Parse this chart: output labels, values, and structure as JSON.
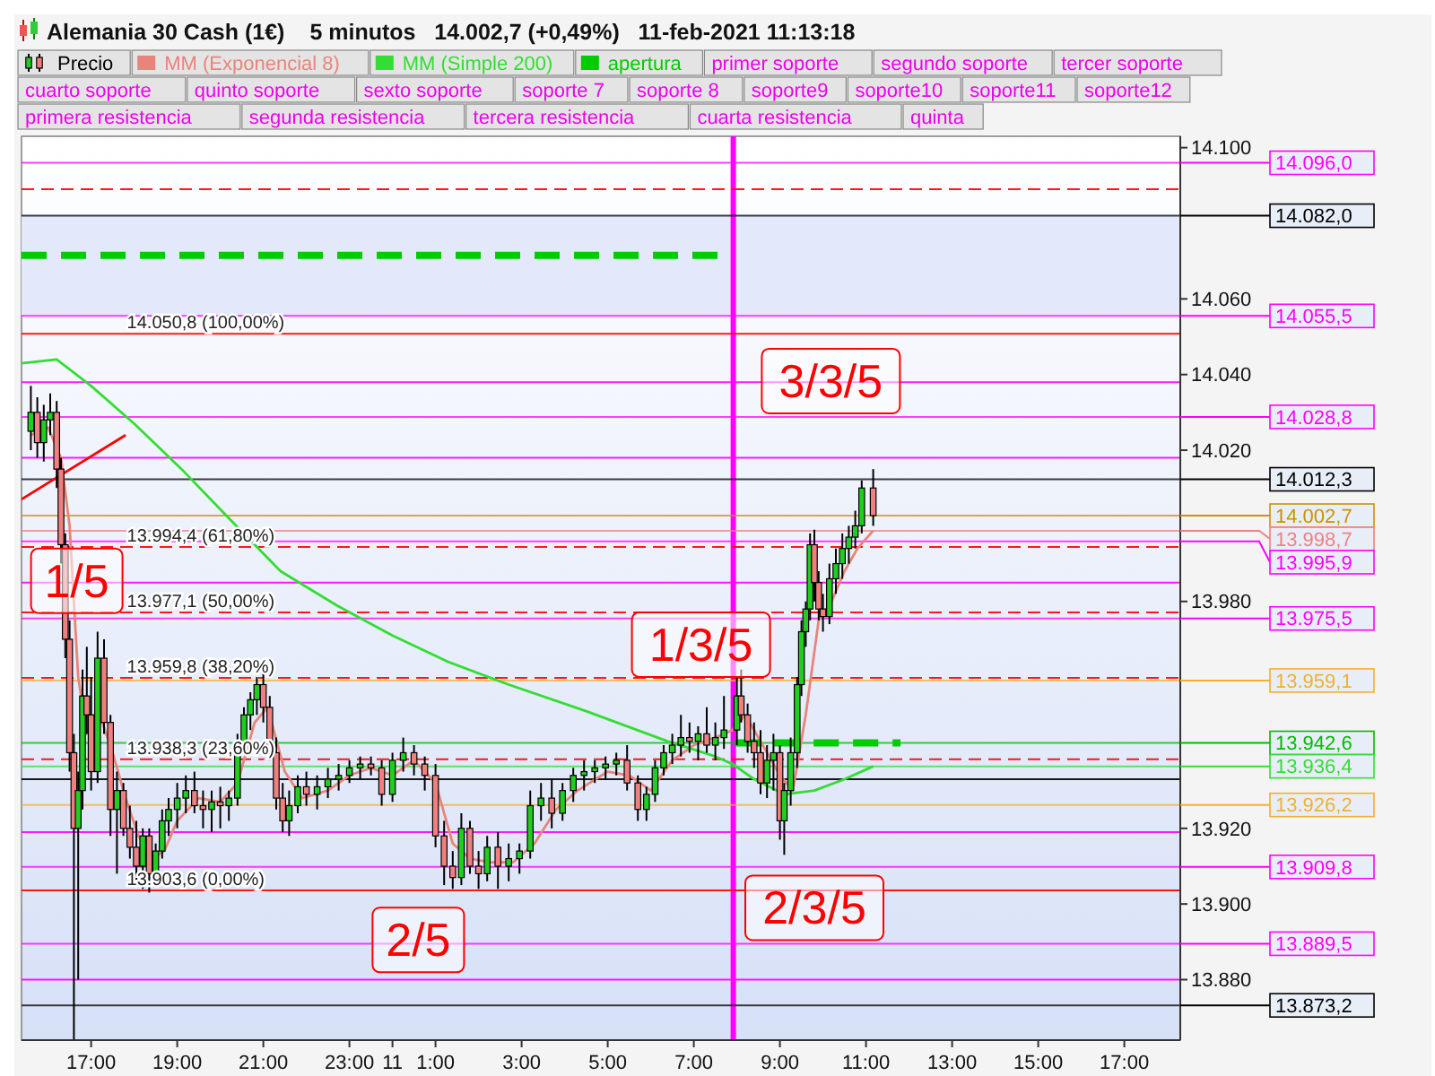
{
  "chart_data": {
    "type": "candlestick",
    "title": "Alemania 30 Cash (1€)",
    "subtitle": "5 minutos   14.002,7 (+0,49%)   11-feb-2021 11:13:18",
    "xlim": [
      "2021-02-10T15:23",
      "2021-02-11T18:18"
    ],
    "ylim": [
      13864,
      14103
    ],
    "xticks": [
      {
        "value": "2021-02-10T17:00",
        "label": "17:00"
      },
      {
        "value": "2021-02-10T19:00",
        "label": "19:00"
      },
      {
        "value": "2021-02-10T21:00",
        "label": "21:00"
      },
      {
        "value": "2021-02-10T23:00",
        "label": "23:00"
      },
      {
        "value": "2021-02-11T00:00",
        "label": "11"
      },
      {
        "value": "2021-02-11T01:00",
        "label": "1:00"
      },
      {
        "value": "2021-02-11T03:00",
        "label": "3:00"
      },
      {
        "value": "2021-02-11T05:00",
        "label": "5:00"
      },
      {
        "value": "2021-02-11T07:00",
        "label": "7:00"
      },
      {
        "value": "2021-02-11T09:00",
        "label": "9:00"
      },
      {
        "value": "2021-02-11T11:00",
        "label": "11:00"
      },
      {
        "value": "2021-02-11T13:00",
        "label": "13:00"
      },
      {
        "value": "2021-02-11T15:00",
        "label": "15:00"
      },
      {
        "value": "2021-02-11T17:00",
        "label": "17:00"
      }
    ],
    "yticks": [
      {
        "value": 14100,
        "label": "14.100"
      },
      {
        "value": 14060,
        "label": "14.060"
      },
      {
        "value": 14040,
        "label": "14.040"
      },
      {
        "value": 14020,
        "label": "14.020"
      },
      {
        "value": 13980,
        "label": "13.980"
      },
      {
        "value": 13920,
        "label": "13.920"
      },
      {
        "value": 13900,
        "label": "13.900"
      },
      {
        "value": 13880,
        "label": "13.880"
      }
    ],
    "legend": "top",
    "series": [
      {
        "name": "Precio",
        "colors": [
          "#22cc22",
          "#f08080",
          "#22cc22",
          "#22cc22",
          "#f08080",
          "#f08080",
          "#f08080",
          "#f08080",
          "#f08080",
          "#22cc22",
          "#22cc22",
          "#f08080",
          "#f08080",
          "#22cc22",
          "#f08080",
          "#f08080",
          "#22cc22",
          "#f08080",
          "#f08080",
          "#f08080",
          "#22cc22",
          "#f08080",
          "#22cc22",
          "#22cc22",
          "#22cc22",
          "#22cc22",
          "#22cc22",
          "#f08080",
          "#f08080",
          "#22cc22",
          "#f08080",
          "#22cc22",
          "#22cc22",
          "#22cc22",
          "#22cc22",
          "#22cc22",
          "#f08080",
          "#f08080",
          "#f08080",
          "#f08080",
          "#22cc22",
          "#22cc22",
          "#f08080",
          "#22cc22",
          "#22cc22",
          "#22cc22",
          "#22cc22",
          "#22cc22",
          "#f08080",
          "#f08080",
          "#22cc22",
          "#22cc22",
          "#f08080",
          "#f08080",
          "#f08080",
          "#f08080",
          "#f08080",
          "#22cc22",
          "#f08080",
          "#f08080",
          "#22cc22",
          "#f08080",
          "#22cc22",
          "#22cc22",
          "#22cc22",
          "#22cc22",
          "#f08080",
          "#22cc22",
          "#22cc22",
          "#22cc22",
          "#22cc22",
          "#22cc22",
          "#22cc22",
          "#f08080",
          "#f08080",
          "#22cc22",
          "#22cc22",
          "#22cc22",
          "#22cc22",
          "#22cc22",
          "#f08080",
          "#22cc22",
          "#f08080",
          "#22cc22",
          "#22cc22",
          "#22cc22",
          "#f08080",
          "#f08080",
          "#f08080",
          "#f08080",
          "#22cc22",
          "#22cc22",
          "#f08080",
          "#22cc22",
          "#22cc22",
          "#22cc22",
          "#22cc22",
          "#22cc22",
          "#22cc22",
          "#f08080",
          "#f08080",
          "#f08080",
          "#22cc22",
          "#22cc22",
          "#22cc22",
          "#22cc22",
          "#22cc22",
          "#22cc22",
          "#f08080"
        ],
        "x": [
          "2021-02-10T15:36",
          "2021-02-10T15:45",
          "2021-02-10T15:54",
          "2021-02-10T16:03",
          "2021-02-10T16:12",
          "2021-02-10T16:18",
          "2021-02-10T16:24",
          "2021-02-10T16:30",
          "2021-02-10T16:36",
          "2021-02-10T16:42",
          "2021-02-10T16:48",
          "2021-02-10T16:54",
          "2021-02-10T17:00",
          "2021-02-10T17:09",
          "2021-02-10T17:18",
          "2021-02-10T17:27",
          "2021-02-10T17:36",
          "2021-02-10T17:45",
          "2021-02-10T17:54",
          "2021-02-10T18:03",
          "2021-02-10T18:12",
          "2021-02-10T18:21",
          "2021-02-10T18:30",
          "2021-02-10T18:39",
          "2021-02-10T18:48",
          "2021-02-10T19:00",
          "2021-02-10T19:12",
          "2021-02-10T19:24",
          "2021-02-10T19:36",
          "2021-02-10T19:48",
          "2021-02-10T20:00",
          "2021-02-10T20:12",
          "2021-02-10T20:24",
          "2021-02-10T20:33",
          "2021-02-10T20:42",
          "2021-02-10T20:51",
          "2021-02-10T21:00",
          "2021-02-10T21:09",
          "2021-02-10T21:18",
          "2021-02-10T21:27",
          "2021-02-10T21:36",
          "2021-02-10T21:48",
          "2021-02-10T22:00",
          "2021-02-10T22:15",
          "2021-02-10T22:30",
          "2021-02-10T22:45",
          "2021-02-10T23:00",
          "2021-02-10T23:15",
          "2021-02-10T23:30",
          "2021-02-10T23:45",
          "2021-02-11T00:00",
          "2021-02-11T00:15",
          "2021-02-11T00:30",
          "2021-02-11T00:45",
          "2021-02-11T01:00",
          "2021-02-11T01:12",
          "2021-02-11T01:24",
          "2021-02-11T01:36",
          "2021-02-11T01:48",
          "2021-02-11T02:00",
          "2021-02-11T02:12",
          "2021-02-11T02:27",
          "2021-02-11T02:42",
          "2021-02-11T02:57",
          "2021-02-11T03:12",
          "2021-02-11T03:27",
          "2021-02-11T03:42",
          "2021-02-11T03:57",
          "2021-02-11T04:12",
          "2021-02-11T04:27",
          "2021-02-11T04:42",
          "2021-02-11T04:57",
          "2021-02-11T05:12",
          "2021-02-11T05:27",
          "2021-02-11T05:42",
          "2021-02-11T05:54",
          "2021-02-11T06:06",
          "2021-02-11T06:18",
          "2021-02-11T06:30",
          "2021-02-11T06:42",
          "2021-02-11T06:54",
          "2021-02-11T07:06",
          "2021-02-11T07:18",
          "2021-02-11T07:30",
          "2021-02-11T07:42",
          "2021-02-11T08:00",
          "2021-02-11T08:06",
          "2021-02-11T08:15",
          "2021-02-11T08:24",
          "2021-02-11T08:33",
          "2021-02-11T08:42",
          "2021-02-11T08:51",
          "2021-02-11T09:00",
          "2021-02-11T09:06",
          "2021-02-11T09:15",
          "2021-02-11T09:24",
          "2021-02-11T09:30",
          "2021-02-11T09:36",
          "2021-02-11T09:42",
          "2021-02-11T09:48",
          "2021-02-11T09:54",
          "2021-02-11T10:00",
          "2021-02-11T10:09",
          "2021-02-11T10:18",
          "2021-02-11T10:27",
          "2021-02-11T10:36",
          "2021-02-11T10:45",
          "2021-02-11T10:54",
          "2021-02-11T11:10"
        ],
        "ohlc": [
          [
            14025,
            14037,
            14020,
            14030
          ],
          [
            14030,
            14034,
            14018,
            14022
          ],
          [
            14022,
            14032,
            14017,
            14028
          ],
          [
            14028,
            14035,
            14024,
            14030
          ],
          [
            14030,
            14033,
            14010,
            14015
          ],
          [
            14015,
            14018,
            13990,
            13995
          ],
          [
            13995,
            13998,
            13965,
            13970
          ],
          [
            13970,
            13975,
            13935,
            13940
          ],
          [
            13940,
            13945,
            13864,
            13920
          ],
          [
            13920,
            13935,
            13880,
            13930
          ],
          [
            13930,
            13962,
            13925,
            13955
          ],
          [
            13955,
            13968,
            13945,
            13950
          ],
          [
            13950,
            13960,
            13930,
            13935
          ],
          [
            13935,
            13972,
            13932,
            13965
          ],
          [
            13965,
            13970,
            13945,
            13948
          ],
          [
            13948,
            13950,
            13918,
            13925
          ],
          [
            13925,
            13935,
            13908,
            13930
          ],
          [
            13930,
            13932,
            13918,
            13920
          ],
          [
            13920,
            13926,
            13912,
            13915
          ],
          [
            13915,
            13922,
            13905,
            13910
          ],
          [
            13910,
            13920,
            13904,
            13918
          ],
          [
            13918,
            13920,
            13903,
            13908
          ],
          [
            13908,
            13916,
            13906,
            13914
          ],
          [
            13914,
            13925,
            13912,
            13922
          ],
          [
            13922,
            13928,
            13918,
            13925
          ],
          [
            13925,
            13932,
            13920,
            13928
          ],
          [
            13928,
            13934,
            13924,
            13930
          ],
          [
            13930,
            13935,
            13924,
            13926
          ],
          [
            13926,
            13930,
            13920,
            13925
          ],
          [
            13925,
            13930,
            13919,
            13927
          ],
          [
            13927,
            13931,
            13920,
            13926
          ],
          [
            13926,
            13930,
            13922,
            13928
          ],
          [
            13928,
            13945,
            13926,
            13942
          ],
          [
            13942,
            13952,
            13940,
            13950
          ],
          [
            13950,
            13956,
            13946,
            13954
          ],
          [
            13954,
            13960,
            13950,
            13958
          ],
          [
            13958,
            13961,
            13948,
            13952
          ],
          [
            13952,
            13955,
            13938,
            13940
          ],
          [
            13940,
            13944,
            13925,
            13928
          ],
          [
            13928,
            13932,
            13919,
            13922
          ],
          [
            13922,
            13930,
            13918,
            13926
          ],
          [
            13926,
            13934,
            13924,
            13931
          ],
          [
            13931,
            13935,
            13926,
            13929
          ],
          [
            13929,
            13934,
            13925,
            13931
          ],
          [
            13931,
            13936,
            13928,
            13933
          ],
          [
            13933,
            13937,
            13930,
            13934
          ],
          [
            13934,
            13938,
            13932,
            13936
          ],
          [
            13936,
            13939,
            13933,
            13937
          ],
          [
            13937,
            13939,
            13934,
            13936
          ],
          [
            13936,
            13938,
            13926,
            13929
          ],
          [
            13929,
            13940,
            13927,
            13938
          ],
          [
            13938,
            13944,
            13935,
            13940
          ],
          [
            13940,
            13942,
            13934,
            13937
          ],
          [
            13937,
            13939,
            13930,
            13934
          ],
          [
            13934,
            13937,
            13915,
            13918
          ],
          [
            13918,
            13922,
            13905,
            13910
          ],
          [
            13910,
            13914,
            13904,
            13907
          ],
          [
            13907,
            13924,
            13905,
            13920
          ],
          [
            13920,
            13922,
            13908,
            13910
          ],
          [
            13910,
            13914,
            13904,
            13908
          ],
          [
            13908,
            13918,
            13906,
            13915
          ],
          [
            13915,
            13919,
            13904,
            13910
          ],
          [
            13910,
            13916,
            13906,
            13912
          ],
          [
            13912,
            13916,
            13908,
            13914
          ],
          [
            13914,
            13930,
            13912,
            13926
          ],
          [
            13926,
            13932,
            13922,
            13928
          ],
          [
            13928,
            13933,
            13920,
            13924
          ],
          [
            13924,
            13932,
            13922,
            13930
          ],
          [
            13930,
            13936,
            13927,
            13934
          ],
          [
            13934,
            13938,
            13930,
            13935
          ],
          [
            13935,
            13938,
            13932,
            13936
          ],
          [
            13936,
            13939,
            13933,
            13937
          ],
          [
            13937,
            13940,
            13934,
            13938
          ],
          [
            13938,
            13942,
            13930,
            13932
          ],
          [
            13932,
            13934,
            13922,
            13925
          ],
          [
            13925,
            13931,
            13922,
            13929
          ],
          [
            13929,
            13938,
            13927,
            13936
          ],
          [
            13936,
            13942,
            13934,
            13940
          ],
          [
            13940,
            13945,
            13937,
            13942
          ],
          [
            13942,
            13950,
            13939,
            13944
          ],
          [
            13944,
            13948,
            13940,
            13943
          ],
          [
            13943,
            13947,
            13938,
            13945
          ],
          [
            13945,
            13952,
            13940,
            13942
          ],
          [
            13942,
            13948,
            13938,
            13944
          ],
          [
            13944,
            13955,
            13941,
            13946
          ],
          [
            13946,
            13960,
            13942,
            13955
          ],
          [
            13955,
            13962,
            13948,
            13950
          ],
          [
            13950,
            13953,
            13940,
            13943
          ],
          [
            13943,
            13948,
            13936,
            13940
          ],
          [
            13940,
            13946,
            13929,
            13932
          ],
          [
            13932,
            13942,
            13928,
            13938
          ],
          [
            13938,
            13945,
            13930,
            13940
          ],
          [
            13940,
            13942,
            13917,
            13922
          ],
          [
            13922,
            13932,
            13913,
            13930
          ],
          [
            13930,
            13944,
            13926,
            13940
          ],
          [
            13940,
            13960,
            13936,
            13958
          ],
          [
            13958,
            13975,
            13955,
            13972
          ],
          [
            13972,
            13980,
            13968,
            13978
          ],
          [
            13978,
            13998,
            13975,
            13995
          ],
          [
            13995,
            13999,
            13980,
            13985
          ],
          [
            13985,
            13988,
            13975,
            13978
          ],
          [
            13978,
            13982,
            13972,
            13976
          ],
          [
            13976,
            13990,
            13974,
            13986
          ],
          [
            13986,
            13994,
            13982,
            13990
          ],
          [
            13990,
            13998,
            13986,
            13994
          ],
          [
            13994,
            14000,
            13990,
            13997
          ],
          [
            13997,
            14004,
            13994,
            14000
          ],
          [
            14000,
            14012,
            13998,
            14010
          ],
          [
            14010,
            14015,
            14000,
            14002.7
          ]
        ]
      },
      {
        "type": "line",
        "name": "MM (Exponencial 8)",
        "color": "#e8857a",
        "x": [
          "2021-02-10T15:36",
          "2021-02-10T16:00",
          "2021-02-10T16:18",
          "2021-02-10T16:30",
          "2021-02-10T16:42",
          "2021-02-10T16:54",
          "2021-02-10T17:12",
          "2021-02-10T17:30",
          "2021-02-10T17:48",
          "2021-02-10T18:06",
          "2021-02-10T18:24",
          "2021-02-10T18:42",
          "2021-02-10T19:00",
          "2021-02-10T19:30",
          "2021-02-10T20:00",
          "2021-02-10T20:24",
          "2021-02-10T20:48",
          "2021-02-10T21:06",
          "2021-02-10T21:30",
          "2021-02-10T21:54",
          "2021-02-10T22:30",
          "2021-02-10T23:00",
          "2021-02-10T23:30",
          "2021-02-11T00:00",
          "2021-02-11T00:30",
          "2021-02-11T01:00",
          "2021-02-11T01:24",
          "2021-02-11T01:48",
          "2021-02-11T02:18",
          "2021-02-11T02:48",
          "2021-02-11T03:18",
          "2021-02-11T03:48",
          "2021-02-11T04:18",
          "2021-02-11T05:00",
          "2021-02-11T05:30",
          "2021-02-11T06:00",
          "2021-02-11T06:30",
          "2021-02-11T07:00",
          "2021-02-11T07:30",
          "2021-02-11T07:54",
          "2021-02-11T08:12",
          "2021-02-11T08:36",
          "2021-02-11T09:00",
          "2021-02-11T09:18",
          "2021-02-11T09:36",
          "2021-02-11T09:54",
          "2021-02-11T10:12",
          "2021-02-11T10:30",
          "2021-02-11T10:48",
          "2021-02-11T11:10"
        ],
        "values": [
          14024,
          14026,
          14018,
          14000,
          13960,
          13945,
          13950,
          13940,
          13928,
          13918,
          13912,
          13914,
          13922,
          13928,
          13927,
          13932,
          13948,
          13952,
          13935,
          13928,
          13930,
          13934,
          13936,
          13934,
          13938,
          13932,
          13916,
          13912,
          13911,
          13911,
          13916,
          13925,
          13930,
          13935,
          13934,
          13930,
          13938,
          13942,
          13944,
          13946,
          13950,
          13942,
          13934,
          13930,
          13950,
          13975,
          13980,
          13988,
          13994,
          13998.7
        ]
      },
      {
        "type": "line",
        "name": "MM (Simple 200)",
        "color": "#33dd33",
        "x": [
          "2021-02-10T15:23",
          "2021-02-10T16:12",
          "2021-02-10T17:00",
          "2021-02-10T18:00",
          "2021-02-10T19:06",
          "2021-02-10T20:12",
          "2021-02-10T21:24",
          "2021-02-10T22:42",
          "2021-02-11T00:00",
          "2021-02-11T01:18",
          "2021-02-11T02:42",
          "2021-02-11T04:30",
          "2021-02-11T06:24",
          "2021-02-11T07:30",
          "2021-02-11T07:54",
          "2021-02-11T08:24",
          "2021-02-11T09:06",
          "2021-02-11T09:48",
          "2021-02-11T10:30",
          "2021-02-11T11:10"
        ],
        "values": [
          14043,
          14044,
          14037,
          14027,
          14015,
          14002,
          13988,
          13979,
          13971,
          13964,
          13958,
          13951,
          13943,
          13939,
          13937,
          13933,
          13929,
          13930,
          13933,
          13936.4
        ]
      },
      {
        "type": "line",
        "name": "apertura",
        "color": "#00cc00",
        "line_style": "dashed",
        "x": [
          "2021-02-10T15:23",
          "2021-02-11T07:45",
          "2021-02-11T07:48",
          "2021-02-11T07:57",
          "2021-02-11T11:48"
        ],
        "values": [
          14071.5,
          14071.5,
          null,
          13942.6,
          13942.6
        ]
      },
      {
        "type": "line",
        "color": "#ff0000",
        "x": [
          "2021-02-10T15:23",
          "2021-02-10T17:48"
        ],
        "values": [
          14007,
          14024
        ]
      }
    ],
    "bands": [
      {
        "axis": "y",
        "from": 14055.5,
        "to": 14082,
        "color": "#e3e9fb"
      }
    ],
    "ref_lines": [
      {
        "axis": "x",
        "value": "2021-02-11T07:55",
        "color": "#ff00ff"
      },
      {
        "axis": "y",
        "value": 14089,
        "color": "#ff0000",
        "line_style": "dashed"
      },
      {
        "axis": "y",
        "value": 14050.8,
        "color": "#ff0000",
        "line_style": "solid"
      },
      {
        "axis": "y",
        "value": 13994.4,
        "color": "#ff0000",
        "line_style": "dashed"
      },
      {
        "axis": "y",
        "value": 13977.1,
        "color": "#ff0000",
        "line_style": "dashed"
      },
      {
        "axis": "y",
        "value": 13959.8,
        "color": "#ff0000",
        "line_style": "dashed"
      },
      {
        "axis": "y",
        "value": 13938.3,
        "color": "#ff0000",
        "line_style": "dashed"
      },
      {
        "axis": "y",
        "value": 13903.6,
        "color": "#ff0000",
        "line_style": "solid"
      },
      {
        "axis": "y",
        "value": 14038,
        "color": "#ff00ff"
      },
      {
        "axis": "y",
        "value": 14018,
        "color": "#ff00ff"
      },
      {
        "axis": "y",
        "value": 13985,
        "color": "#ff00ff"
      },
      {
        "axis": "y",
        "value": 13919,
        "color": "#ff00ff"
      },
      {
        "axis": "y",
        "value": 13880,
        "color": "#ff00ff"
      },
      {
        "axis": "y",
        "value": 13933,
        "color": "#000000"
      },
      {
        "axis": "y",
        "value": 14096.0,
        "label": "14.096,0",
        "color": "#ff00ff"
      },
      {
        "axis": "y",
        "value": 14082.0,
        "label": "14.082,0",
        "color": "#000000"
      },
      {
        "axis": "y",
        "value": 14055.5,
        "label": "14.055,5",
        "color": "#ff00ff"
      },
      {
        "axis": "y",
        "value": 14028.8,
        "label": "14.028,8",
        "color": "#ff00ff"
      },
      {
        "axis": "y",
        "value": 14012.3,
        "label": "14.012,3",
        "color": "#000000"
      },
      {
        "axis": "y",
        "value": 14002.7,
        "label": "14.002,7",
        "color": "#c89400"
      },
      {
        "axis": "y",
        "value": 13998.7,
        "label": "13.998,7",
        "color": "#f08080"
      },
      {
        "axis": "y",
        "value": 13995.9,
        "label": "13.995,9",
        "color": "#ff00ff"
      },
      {
        "axis": "y",
        "value": 13975.5,
        "label": "13.975,5",
        "color": "#ff00ff"
      },
      {
        "axis": "y",
        "value": 13959.1,
        "label": "13.959,1",
        "color": "#f0b030"
      },
      {
        "axis": "y",
        "value": 13942.6,
        "label": "13.942,6",
        "color": "#00bb00"
      },
      {
        "axis": "y",
        "value": 13936.4,
        "label": "13.936,4",
        "color": "#33dd33"
      },
      {
        "axis": "y",
        "value": 13926.2,
        "label": "13.926,2",
        "color": "#f0b030"
      },
      {
        "axis": "y",
        "value": 13909.8,
        "label": "13.909,8",
        "color": "#ff00ff"
      },
      {
        "axis": "y",
        "value": 13889.5,
        "label": "13.889,5",
        "color": "#ff00ff"
      },
      {
        "axis": "y",
        "value": 13873.2,
        "label": "13.873,2",
        "color": "#000000"
      }
    ],
    "annotations": [
      "primer soporte",
      "segundo soporte",
      "tercer soporte",
      "cuarto soporte",
      "quinto soporte",
      "sexto soporte",
      "soporte 7",
      "soporte 8",
      "soporte9",
      "soporte10",
      "soporte11",
      "soporte12",
      "primera resistencia",
      "segunda resistencia",
      "tercera resistencia",
      "cuarta resistencia",
      "quinta",
      {
        "text": "14.050,8 (100,00%)",
        "x": "2021-02-10T17:50",
        "y": 14050.8
      },
      {
        "text": "13.994,4 (61,80%)",
        "x": "2021-02-10T17:50",
        "y": 13994.4
      },
      {
        "text": "13.977,1 (50,00%)",
        "x": "2021-02-10T17:50",
        "y": 13977.1
      },
      {
        "text": "13.959,8 (38,20%)",
        "x": "2021-02-10T17:50",
        "y": 13959.8
      },
      {
        "text": "13.938,3 (23,60%)",
        "x": "2021-02-10T17:50",
        "y": 13938.3
      },
      {
        "text": "13.903,6 (0,00%)",
        "x": "2021-02-10T17:50",
        "y": 13903.6
      },
      {
        "text": "1/5",
        "x": "2021-02-10T16:40",
        "y": 13976
      },
      {
        "text": "2/5",
        "x": "2021-02-11T00:36",
        "y": 13881
      },
      {
        "text": "1/3/5",
        "x": "2021-02-11T07:10",
        "y": 13959.1
      },
      {
        "text": "2/3/5",
        "x": "2021-02-11T09:48",
        "y": 13889.5
      },
      {
        "text": "3/3/5",
        "x": "2021-02-11T10:11",
        "y": 14028.8
      }
    ]
  }
}
